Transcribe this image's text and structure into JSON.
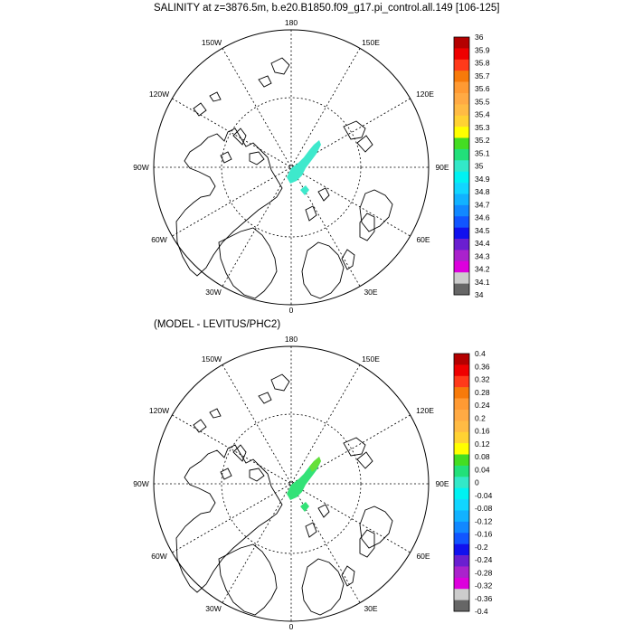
{
  "panel_top": {
    "title": "SALINITY at z=3876.5m, b.e20.B1850.f09_g17.pi_control.all.149 [106-125]",
    "colorbar_labels": [
      "36",
      "35.9",
      "35.8",
      "35.7",
      "35.6",
      "35.5",
      "35.4",
      "35.3",
      "35.2",
      "35.1",
      "35",
      "34.9",
      "34.8",
      "34.7",
      "34.6",
      "34.5",
      "34.4",
      "34.3",
      "34.2",
      "34.1",
      "34"
    ],
    "colorbar_colors": [
      "#b40000",
      "#ee0000",
      "#ff3a1a",
      "#f77a0a",
      "#ff9a33",
      "#ffaa44",
      "#ffbb44",
      "#ffd233",
      "#ffff00",
      "#44dd22",
      "#22e07a",
      "#33e8c8",
      "#00f2f2",
      "#11d6ff",
      "#11b2ff",
      "#1188ff",
      "#1155ff",
      "#1111ee",
      "#6a1fd0",
      "#aa22cc",
      "#dd00dd",
      "#cccccc",
      "#666666"
    ]
  },
  "panel_bottom": {
    "title": "(MODEL - LEVITUS/PHC2)",
    "colorbar_labels": [
      "0.4",
      "0.36",
      "0.32",
      "0.28",
      "0.24",
      "0.2",
      "0.16",
      "0.12",
      "0.08",
      "0.04",
      "0",
      "-0.04",
      "-0.08",
      "-0.12",
      "-0.16",
      "-0.2",
      "-0.24",
      "-0.28",
      "-0.32",
      "-0.36",
      "-0.4"
    ],
    "colorbar_colors": [
      "#b40000",
      "#ee0000",
      "#ff3a1a",
      "#f77a0a",
      "#ff9a33",
      "#ffaa44",
      "#ffbb44",
      "#ffd233",
      "#ffff00",
      "#44dd22",
      "#22e07a",
      "#33e8c8",
      "#00f2f2",
      "#11d6ff",
      "#11b2ff",
      "#1188ff",
      "#1155ff",
      "#1111ee",
      "#6a1fd0",
      "#aa22cc",
      "#dd00dd",
      "#cccccc",
      "#666666"
    ]
  },
  "longitude_labels": [
    "180",
    "150W",
    "150E",
    "120W",
    "120E",
    "90W",
    "90E",
    "60W",
    "60E",
    "30W",
    "30E",
    "0"
  ],
  "patch_colors": {
    "top": "#3ee9cc",
    "bottom": "#33e277",
    "bottom_highlight": "#66e03a"
  }
}
